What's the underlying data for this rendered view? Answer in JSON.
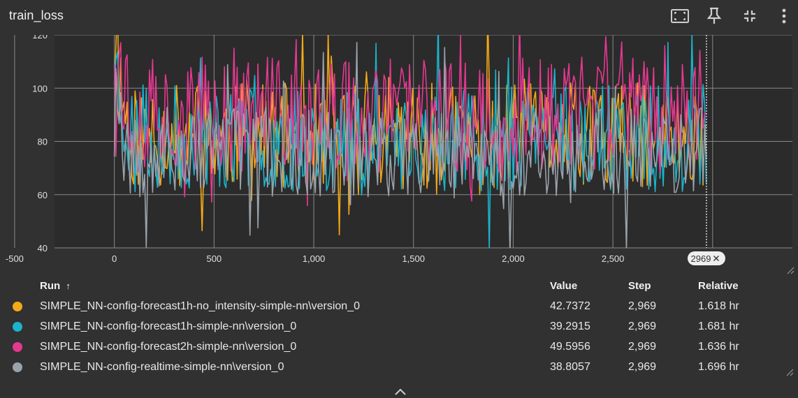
{
  "card": {
    "title": "train_loss"
  },
  "icons": [
    "fit-domain-icon",
    "pin-icon",
    "collapse-icon",
    "more-vert-icon"
  ],
  "colors": {
    "background": "#313131",
    "plot_background": "#2b2b2b",
    "grid": "#8a8a8a",
    "no_intensity": "#f4a917",
    "forecast1h": "#1ab4cc",
    "forecast2h": "#e53891",
    "realtime": "#9aa2ab"
  },
  "chart_data": {
    "type": "line",
    "xlim": [
      -300,
      3400
    ],
    "ylim": [
      40,
      120
    ],
    "x_ticks": [
      -500,
      0,
      500,
      1000,
      1500,
      2000,
      2500,
      3000
    ],
    "x_tick_labels": [
      "-500",
      "0",
      "500",
      "1,000",
      "1,500",
      "2,000",
      "2,500",
      "3,000"
    ],
    "y_ticks": [
      40,
      60,
      80,
      100,
      120
    ],
    "y_tick_labels": [
      "40",
      "60",
      "80",
      "100",
      "120"
    ],
    "grid": true,
    "cursor": {
      "step": 2969,
      "label": "2969"
    },
    "series": [
      {
        "name": "SIMPLE_NN-config-forecast1h-no_intensity-simple-nn\\version_0",
        "color": "#f4a917",
        "mean": 82,
        "spread": 20,
        "seed": 11
      },
      {
        "name": "SIMPLE_NN-config-forecast1h-simple-nn\\version_0",
        "color": "#1ab4cc",
        "mean": 81,
        "spread": 20,
        "seed": 23
      },
      {
        "name": "SIMPLE_NN-config-forecast2h-simple-nn\\version_0",
        "color": "#e53891",
        "mean": 90,
        "spread": 22,
        "seed": 37
      },
      {
        "name": "SIMPLE_NN-config-realtime-simple-nn\\version_0",
        "color": "#9aa2ab",
        "mean": 76,
        "spread": 17,
        "seed": 53
      }
    ],
    "x_start": 0,
    "x_end": 2969,
    "x_step": 8
  },
  "table": {
    "headers": {
      "run": "Run",
      "sort_arrow": "↑",
      "value": "Value",
      "step": "Step",
      "relative": "Relative"
    },
    "rows": [
      {
        "run": "SIMPLE_NN-config-forecast1h-no_intensity-simple-nn\\version_0",
        "value": "42.7372",
        "step": "2,969",
        "relative": "1.618 hr",
        "color": "#f4a917"
      },
      {
        "run": "SIMPLE_NN-config-forecast1h-simple-nn\\version_0",
        "value": "39.2915",
        "step": "2,969",
        "relative": "1.681 hr",
        "color": "#1ab4cc"
      },
      {
        "run": "SIMPLE_NN-config-forecast2h-simple-nn\\version_0",
        "value": "49.5956",
        "step": "2,969",
        "relative": "1.636 hr",
        "color": "#e53891"
      },
      {
        "run": "SIMPLE_NN-config-realtime-simple-nn\\version_0",
        "value": "38.8057",
        "step": "2,969",
        "relative": "1.696 hr",
        "color": "#9aa2ab"
      }
    ]
  }
}
